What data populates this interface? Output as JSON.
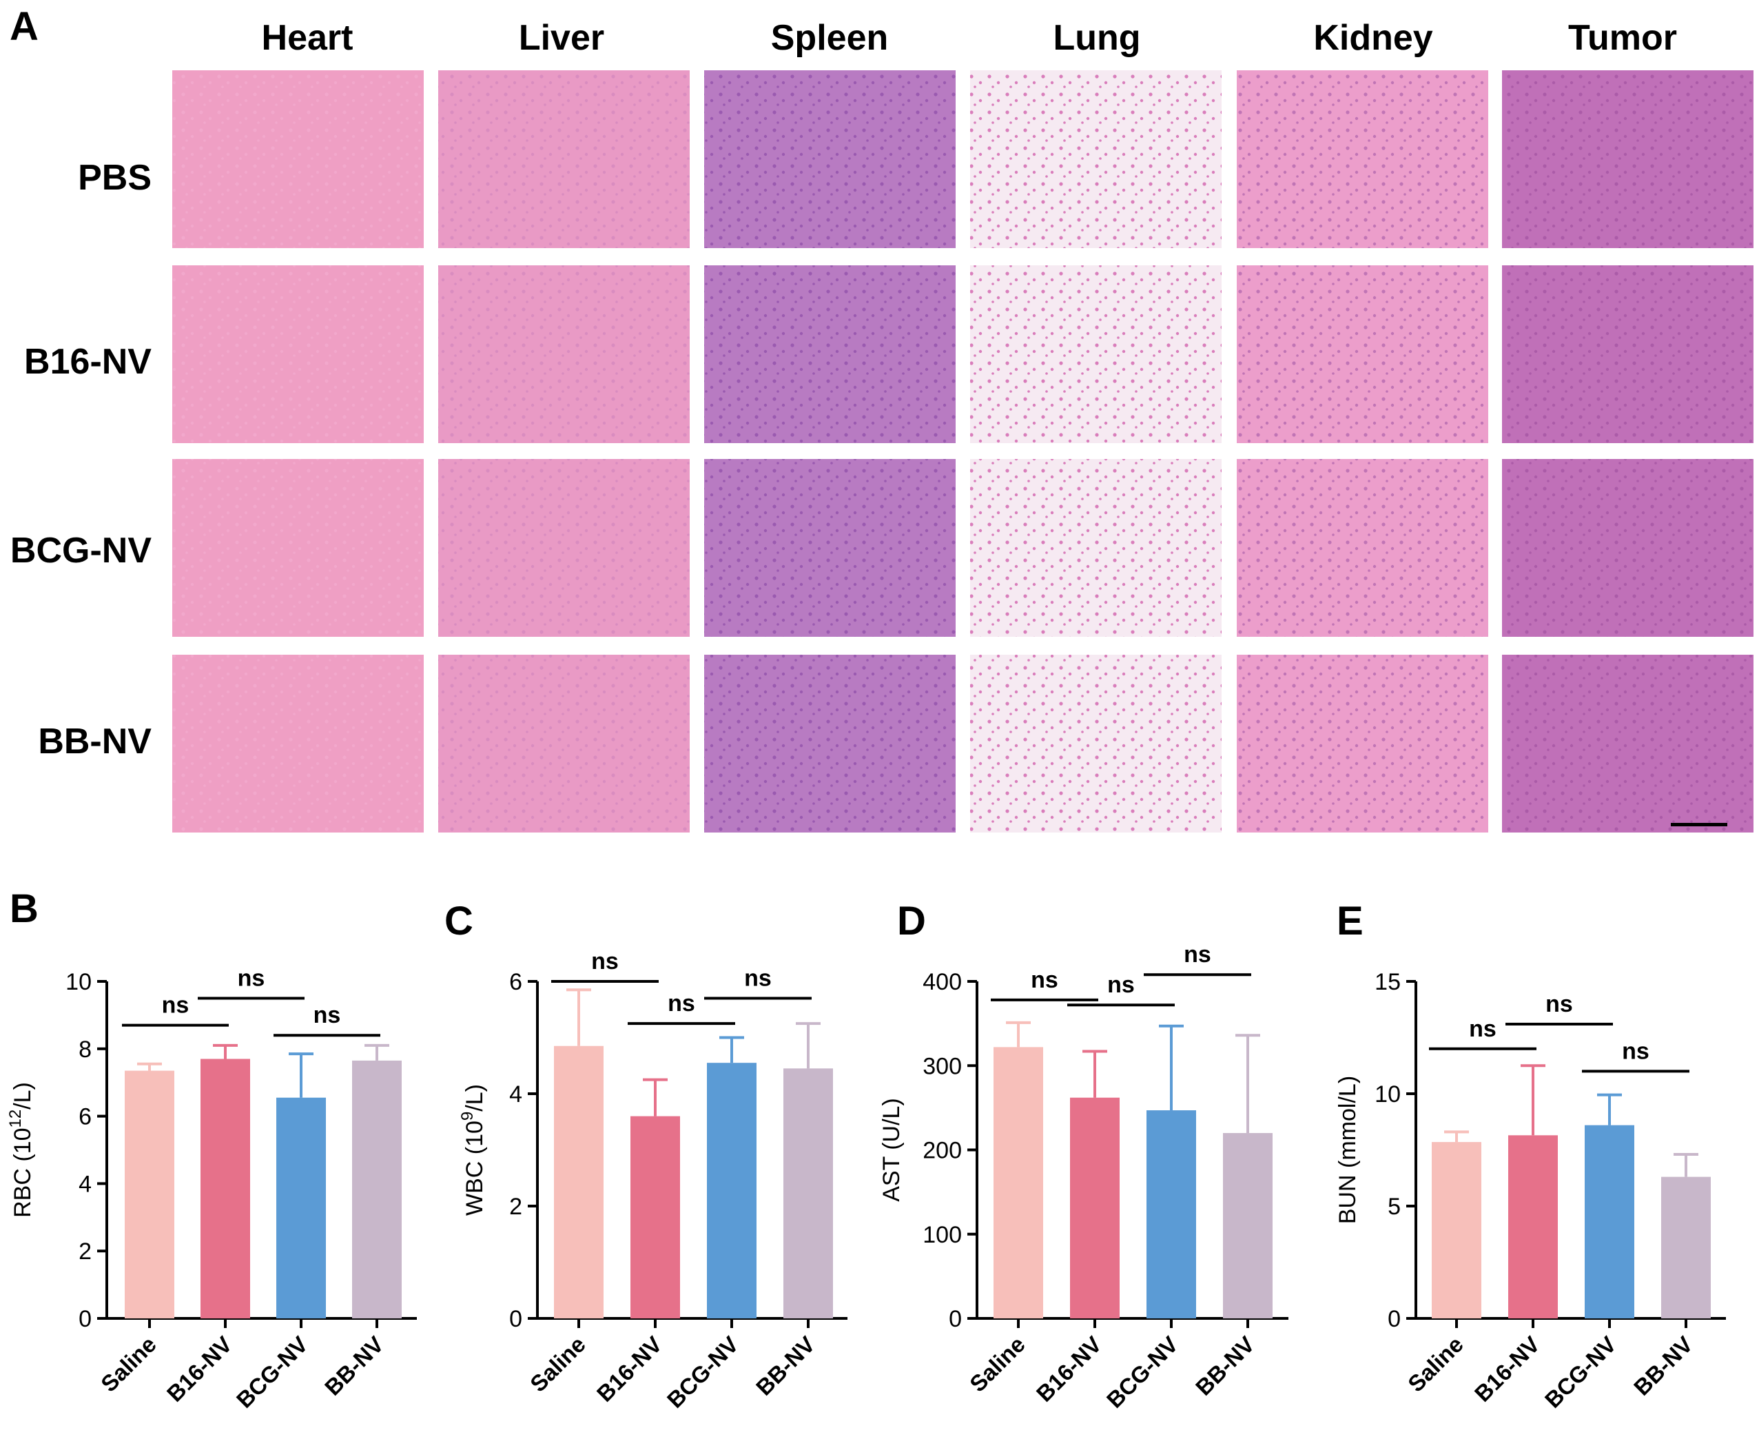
{
  "figure": {
    "panels": {
      "A": "A",
      "B": "B",
      "C": "C",
      "D": "D",
      "E": "E"
    },
    "histology": {
      "columns": [
        "Heart",
        "Liver",
        "Spleen",
        "Lung",
        "Kidney",
        "Tumor"
      ],
      "rows": [
        "PBS",
        "B16-NV",
        "BCG-NV",
        "BB-NV"
      ],
      "tile_colors": {
        "Heart": [
          "#ef9fc4",
          "#f2a8cc"
        ],
        "Liver": [
          "#e99ac5",
          "#d98cc0"
        ],
        "Spleen": [
          "#b87bc2",
          "#9a5ab0"
        ],
        "Lung": [
          "#f6eaf2",
          "#d97dbb"
        ],
        "Kidney": [
          "#ec9ecb",
          "#c074b5"
        ],
        "Tumor": [
          "#c070b8",
          "#ab5ba8"
        ]
      }
    }
  },
  "chart_data": [
    {
      "panel": "B",
      "type": "bar",
      "ylabel_main": "RBC (10",
      "ylabel_sup": "12",
      "ylabel_end": "/L)",
      "categories": [
        "Saline",
        "B16-NV",
        "BCG-NV",
        "BB-NV"
      ],
      "values": [
        7.35,
        7.7,
        6.55,
        7.65
      ],
      "errors": [
        0.2,
        0.4,
        1.3,
        0.45
      ],
      "colors": [
        "#f7bfba",
        "#e6718a",
        "#5b9bd5",
        "#c8b7ca"
      ],
      "ylim": [
        0,
        10
      ],
      "yticks": [
        0,
        2,
        4,
        6,
        8,
        10
      ],
      "significance": [
        {
          "from": 0,
          "to": 1,
          "label": "ns",
          "y": 8.7
        },
        {
          "from": 1,
          "to": 2,
          "label": "ns",
          "y": 9.5
        },
        {
          "from": 2,
          "to": 3,
          "label": "ns",
          "y": 8.4
        }
      ]
    },
    {
      "panel": "C",
      "type": "bar",
      "ylabel_main": "WBC (10",
      "ylabel_sup": "9",
      "ylabel_end": "/L)",
      "categories": [
        "Saline",
        "B16-NV",
        "BCG-NV",
        "BB-NV"
      ],
      "values": [
        4.85,
        3.6,
        4.55,
        4.45
      ],
      "errors": [
        1.0,
        0.65,
        0.45,
        0.8
      ],
      "colors": [
        "#f7bfba",
        "#e6718a",
        "#5b9bd5",
        "#c8b7ca"
      ],
      "ylim": [
        0,
        6
      ],
      "yticks": [
        0,
        2,
        4,
        6
      ],
      "significance": [
        {
          "from": 0,
          "to": 1,
          "label": "ns",
          "y": 6.0
        },
        {
          "from": 1,
          "to": 2,
          "label": "ns",
          "y": 5.25
        },
        {
          "from": 2,
          "to": 3,
          "label": "ns",
          "y": 5.7
        }
      ]
    },
    {
      "panel": "D",
      "type": "bar",
      "ylabel_main": "AST (U/L)",
      "ylabel_sup": "",
      "ylabel_end": "",
      "categories": [
        "Saline",
        "B16-NV",
        "BCG-NV",
        "BB-NV"
      ],
      "values": [
        322,
        262,
        247,
        220
      ],
      "errors": [
        29,
        55,
        100,
        116
      ],
      "colors": [
        "#f7bfba",
        "#e6718a",
        "#5b9bd5",
        "#c8b7ca"
      ],
      "ylim": [
        0,
        400
      ],
      "yticks": [
        0,
        100,
        200,
        300,
        400
      ],
      "significance": [
        {
          "from": 0,
          "to": 1,
          "label": "ns",
          "y": 378
        },
        {
          "from": 1,
          "to": 2,
          "label": "ns",
          "y": 372
        },
        {
          "from": 2,
          "to": 3,
          "label": "ns",
          "y": 408
        }
      ]
    },
    {
      "panel": "E",
      "type": "bar",
      "ylabel_main": "BUN (mmol/L)",
      "ylabel_sup": "",
      "ylabel_end": "",
      "categories": [
        "Saline",
        "B16-NV",
        "BCG-NV",
        "BB-NV"
      ],
      "values": [
        7.85,
        8.15,
        8.6,
        6.3
      ],
      "errors": [
        0.45,
        3.1,
        1.35,
        1.0
      ],
      "colors": [
        "#f7bfba",
        "#e6718a",
        "#5b9bd5",
        "#c8b7ca"
      ],
      "ylim": [
        0,
        15
      ],
      "yticks": [
        0,
        5,
        10,
        15
      ],
      "significance": [
        {
          "from": 0,
          "to": 1,
          "label": "ns",
          "y": 12.0
        },
        {
          "from": 1,
          "to": 2,
          "label": "ns",
          "y": 13.1
        },
        {
          "from": 2,
          "to": 3,
          "label": "ns",
          "y": 11.0
        }
      ]
    }
  ]
}
